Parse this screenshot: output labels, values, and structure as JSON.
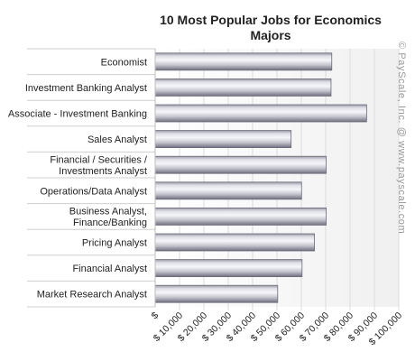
{
  "chart_data": {
    "type": "bar",
    "orientation": "horizontal",
    "title": "10 Most Popular Jobs for Economics Majors",
    "watermark": "© PayScale, Inc. @ www.payscale.com",
    "categories": [
      "Economist",
      "Investment Banking Analyst",
      "Associate - Investment Banking",
      "Sales Analyst",
      "Financial / Securities / Investments Analyst",
      "Operations/Data Analyst",
      "Business Analyst, Finance/Banking",
      "Pricing Analyst",
      "Financial Analyst",
      "Market Research Analyst"
    ],
    "category_label_lines": [
      [
        "Economist"
      ],
      [
        "Investment Banking Analyst"
      ],
      [
        "Associate - Investment Banking"
      ],
      [
        "Sales Analyst"
      ],
      [
        "Financial / Securities /",
        "Investments Analyst"
      ],
      [
        "Operations/Data Analyst"
      ],
      [
        "Business Analyst,",
        "Finance/Banking"
      ],
      [
        "Pricing Analyst"
      ],
      [
        "Financial Analyst"
      ],
      [
        "Market Research Analyst"
      ]
    ],
    "values": [
      72500,
      72200,
      86800,
      55800,
      70200,
      60100,
      70200,
      65400,
      60300,
      50300
    ],
    "xlim": [
      0,
      100000
    ],
    "x_ticks": [
      0,
      10000,
      20000,
      30000,
      40000,
      50000,
      60000,
      70000,
      80000,
      90000,
      100000
    ],
    "x_tick_labels": [
      "$",
      "$ 10,000",
      "$ 20,000",
      "$ 30,000",
      "$ 40,000",
      "$ 50,000",
      "$ 60,000",
      "$ 70,000",
      "$ 80,000",
      "$ 90,000",
      "$ 100,000"
    ],
    "grid": true,
    "xlabel": "",
    "ylabel": "",
    "colors": {
      "bar_light": "#f4f4f8",
      "bar_mid": "#c9c9d3",
      "bar_dark": "#7c7c8c",
      "grid": "#dcdcdc",
      "plot_bg": "#f7f7f7"
    }
  }
}
